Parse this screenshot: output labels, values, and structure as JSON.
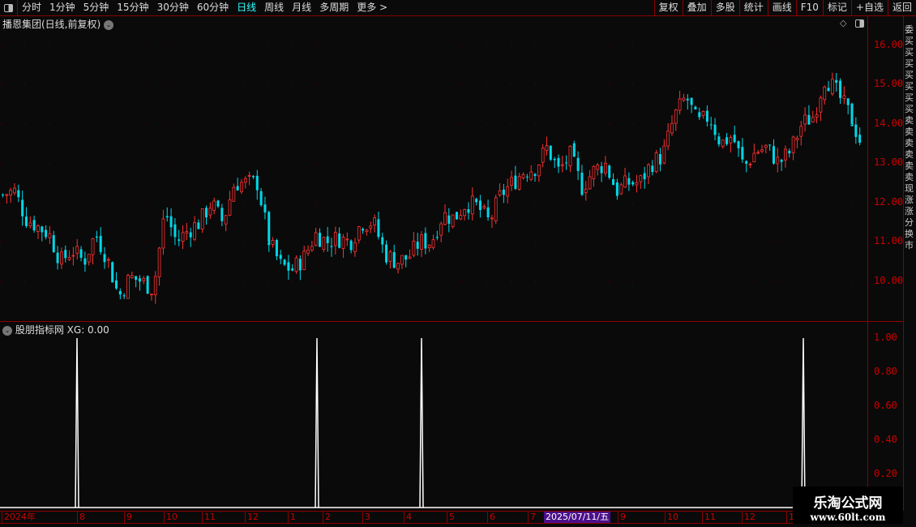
{
  "toolbar": {
    "periods": [
      "分时",
      "1分钟",
      "5分钟",
      "15分钟",
      "30分钟",
      "60分钟",
      "日线",
      "周线",
      "月线",
      "多周期",
      "更多 >"
    ],
    "active": "日线",
    "right_buttons": [
      "复权",
      "叠加",
      "多股",
      "统计",
      "画线",
      "F10",
      "标记",
      "+自选",
      "返回"
    ]
  },
  "main": {
    "title": "播恩集团(日线,前复权)",
    "y_ticks": [
      "16.00",
      "15.00",
      "14.00",
      "13.00",
      "12.00",
      "11.00",
      "10.00"
    ]
  },
  "indicator": {
    "title": "股朋指标网",
    "value": "XG: 0.00",
    "y_ticks": [
      "1.00",
      "0.80",
      "0.60",
      "0.40",
      "0.20"
    ]
  },
  "xaxis": {
    "labels": [
      "2024年",
      "8",
      "9",
      "10",
      "11",
      "12",
      "1",
      "2",
      "3",
      "4",
      "5",
      "6",
      "7",
      "9",
      "10",
      "11",
      "12",
      "1"
    ],
    "highlight": "2025/07/11/五"
  },
  "watermark": {
    "name": "乐淘公式网",
    "url": "www.60lt.com"
  },
  "colors": {
    "up": "#ff3232",
    "down": "#00d8e8",
    "axis": "#8b0000",
    "label": "#cc0000",
    "highlight": "#4b0f8a"
  },
  "chart_data": [
    {
      "type": "candlestick",
      "ylim": [
        9.3,
        16.4
      ],
      "closes": [
        12.2,
        12.3,
        11.6,
        11.4,
        11.2,
        10.5,
        10.8,
        10.5,
        11.2,
        10.6,
        9.6,
        10.1,
        10.0,
        9.8,
        11.8,
        11.0,
        11.3,
        11.5,
        12.0,
        11.5,
        12.5,
        12.5,
        12.5,
        11.0,
        10.4,
        10.3,
        10.6,
        11.2,
        11.0,
        11.1,
        11.0,
        11.5,
        11.5,
        10.7,
        10.5,
        10.6,
        11.0,
        11.0,
        11.7,
        11.6,
        12.0,
        11.9,
        11.5,
        12.2,
        12.5,
        12.8,
        12.9,
        13.4,
        12.8,
        13.2,
        12.4,
        12.8,
        13.0,
        12.3,
        12.5,
        12.5,
        13.0,
        13.2,
        14.2,
        14.7,
        14.0,
        14.2,
        13.5,
        13.7,
        12.9,
        13.3,
        13.4,
        13.0,
        13.3,
        14.0,
        14.2,
        15.2,
        14.8,
        14.3,
        13.6
      ]
    },
    {
      "type": "line",
      "name": "XG",
      "ylim": [
        0,
        1
      ],
      "signal_dates_month": [
        "2024-08",
        "2025-01",
        "2025-04",
        "2025-12"
      ],
      "values_at_signals": [
        1,
        1,
        1,
        1
      ]
    }
  ]
}
